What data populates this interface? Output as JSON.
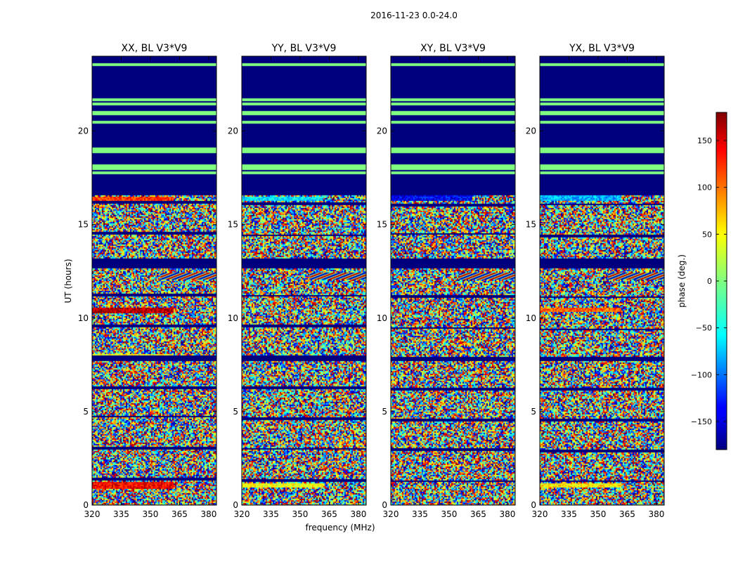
{
  "chart_data": {
    "type": "heatmap",
    "title": "2016-11-23 0.0-24.0",
    "xlabel": "frequency (MHz)",
    "ylabel": "UT (hours)",
    "xlim": [
      320,
      384
    ],
    "ylim": [
      0,
      24
    ],
    "x_ticks": [
      320,
      335,
      350,
      365,
      380
    ],
    "y_ticks": [
      0,
      5,
      10,
      15,
      20
    ],
    "colormap": "jet",
    "panels": [
      {
        "name": "xx",
        "title": "XX, BL V3*V9"
      },
      {
        "name": "yy",
        "title": "YY, BL V3*V9"
      },
      {
        "name": "xy",
        "title": "XY, BL V3*V9"
      },
      {
        "name": "yx",
        "title": "YX, BL V3*V9"
      }
    ],
    "colorbar": {
      "label": "phase (deg.)",
      "min": -180,
      "max": 180,
      "ticks": [
        -150,
        -100,
        -50,
        0,
        50,
        100,
        150
      ],
      "tick_labels": [
        "−150",
        "−100",
        "−50",
        "0",
        "50",
        "100",
        "150"
      ]
    },
    "features": {
      "masked_color": "#00007f",
      "flag_line_color": "#80ff80",
      "masked_hours": [
        [
          16.6,
          24.0
        ],
        [
          12.7,
          13.2
        ],
        [
          7.7,
          7.95
        ]
      ],
      "flag_line_hours": [
        17.8,
        18.0,
        18.2,
        18.9,
        19.1,
        20.5,
        21.0,
        21.5,
        21.7,
        23.6
      ]
    }
  }
}
